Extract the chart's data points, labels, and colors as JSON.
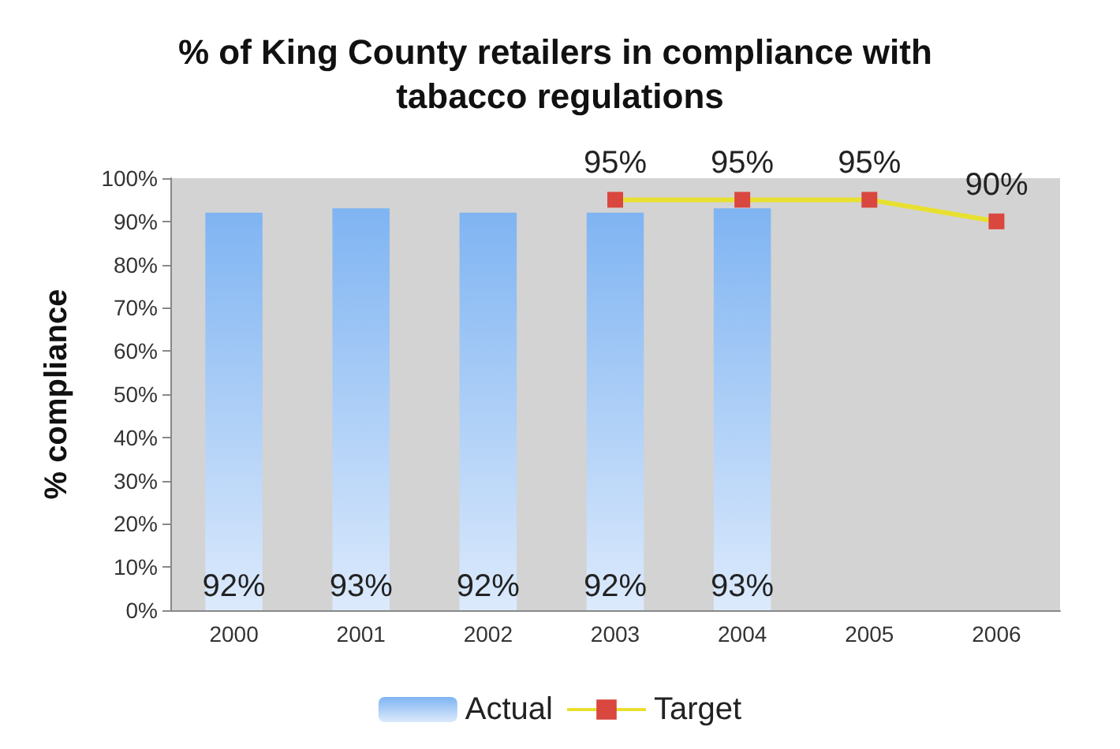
{
  "chart_data": {
    "type": "bar",
    "title": "% of King County retailers in compliance with tabacco regulations",
    "ylabel": "% compliance",
    "categories": [
      "2000",
      "2001",
      "2002",
      "2003",
      "2004",
      "2005",
      "2006"
    ],
    "series": [
      {
        "name": "Actual",
        "color": "#7fb4f2",
        "values": [
          92,
          93,
          92,
          92,
          93,
          null,
          null
        ],
        "value_labels": [
          "92%",
          "93%",
          "92%",
          "92%",
          "93%",
          null,
          null
        ]
      },
      {
        "name": "Target",
        "type": "line",
        "color": "#e8e030",
        "values": [
          null,
          null,
          null,
          95,
          95,
          95,
          90
        ],
        "value_labels": [
          null,
          null,
          null,
          "95%",
          "95%",
          "95%",
          "90%"
        ],
        "marker": "square"
      }
    ],
    "ylim": [
      0,
      100
    ],
    "yticks": [
      {
        "value": 0,
        "label": "0%"
      },
      {
        "value": 10,
        "label": "10%"
      },
      {
        "value": 20,
        "label": "20%"
      },
      {
        "value": 30,
        "label": "30%"
      },
      {
        "value": 40,
        "label": "40%"
      },
      {
        "value": 50,
        "label": "50%"
      },
      {
        "value": 60,
        "label": "60%"
      },
      {
        "value": 70,
        "label": "70%"
      },
      {
        "value": 80,
        "label": "80%"
      },
      {
        "value": 90,
        "label": "90%"
      },
      {
        "value": 100,
        "label": "100%"
      }
    ],
    "legend": "bottom"
  }
}
